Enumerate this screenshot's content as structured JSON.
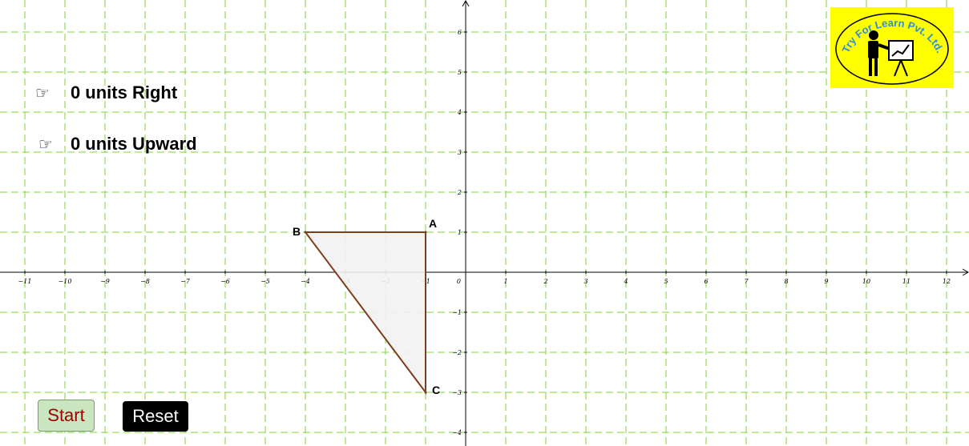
{
  "instructions": {
    "right": {
      "icon": "pointing-hand-icon",
      "hand": "☞",
      "text": "0 units Right"
    },
    "up": {
      "icon": "pointing-hand-icon",
      "hand": "☞",
      "text": "0 units Upward"
    }
  },
  "buttons": {
    "start": "Start",
    "reset": "Reset"
  },
  "logo": {
    "text": "Try For Learn Pvt. Ltd.",
    "icon": "teacher-presenting-icon"
  },
  "colors": {
    "grid": "#7fd33a",
    "triangle_stroke": "#7b3f1e",
    "triangle_fill": "#f2f2f2",
    "logo_bg": "#ffff00",
    "logo_text": "#2f8fd8",
    "start_bg": "#c9e6c0",
    "start_text": "#a00000",
    "reset_bg": "#000000",
    "reset_text": "#ffffff"
  },
  "axes": {
    "x_range": [
      -11,
      12
    ],
    "y_range": [
      -4,
      6
    ],
    "x_ticks": [
      -11,
      -10,
      -9,
      -8,
      -7,
      -6,
      -5,
      -4,
      -3,
      -2,
      -1,
      1,
      2,
      3,
      4,
      5,
      6,
      7,
      8,
      9,
      10,
      11,
      12
    ],
    "y_ticks": [
      -4,
      -3,
      -2,
      -1,
      1,
      2,
      3,
      4,
      5,
      6
    ],
    "origin_label": "0",
    "grid": true
  },
  "triangle": {
    "points": [
      {
        "label": "A",
        "x": -1,
        "y": 1
      },
      {
        "label": "B",
        "x": -4,
        "y": 1
      },
      {
        "label": "C",
        "x": -1,
        "y": -3
      }
    ]
  }
}
